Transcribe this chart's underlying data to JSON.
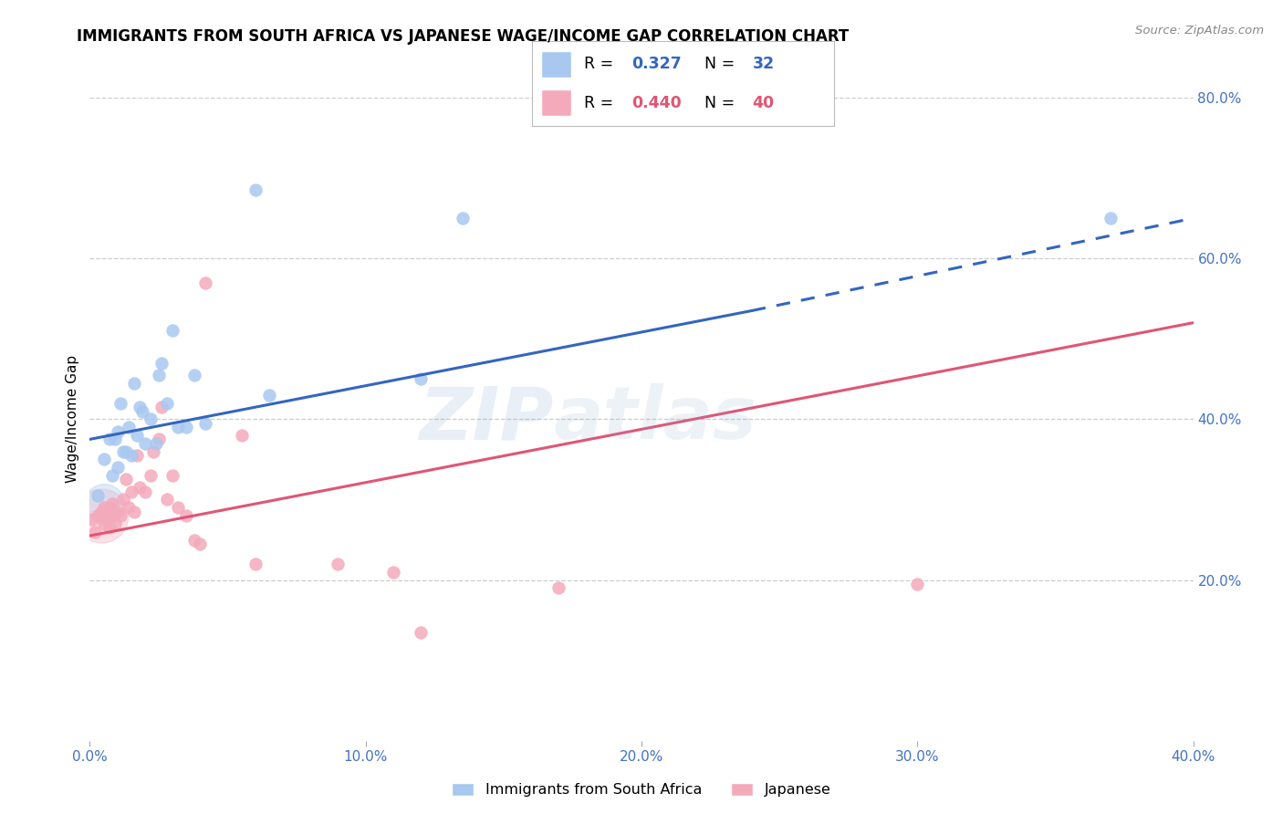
{
  "title": "IMMIGRANTS FROM SOUTH AFRICA VS JAPANESE WAGE/INCOME GAP CORRELATION CHART",
  "source": "Source: ZipAtlas.com",
  "ylabel": "Wage/Income Gap",
  "xlim": [
    0.0,
    0.4
  ],
  "ylim": [
    0.0,
    0.8
  ],
  "xticks": [
    0.0,
    0.1,
    0.2,
    0.3,
    0.4
  ],
  "yticks_right": [
    0.2,
    0.4,
    0.6,
    0.8
  ],
  "blue_R": 0.327,
  "blue_N": 32,
  "pink_R": 0.44,
  "pink_N": 40,
  "blue_label": "Immigrants from South Africa",
  "pink_label": "Japanese",
  "blue_color": "#A8C8F0",
  "pink_color": "#F4AABB",
  "blue_line_color": "#3465C0",
  "pink_line_color": "#E05575",
  "axis_label_color": "#4472C4",
  "grid_color": "#CCCCCC",
  "background_color": "#FFFFFF",
  "blue_scatter_x": [
    0.003,
    0.005,
    0.007,
    0.008,
    0.009,
    0.01,
    0.01,
    0.011,
    0.012,
    0.013,
    0.014,
    0.015,
    0.016,
    0.017,
    0.018,
    0.019,
    0.02,
    0.022,
    0.024,
    0.025,
    0.026,
    0.028,
    0.03,
    0.032,
    0.035,
    0.038,
    0.042,
    0.06,
    0.065,
    0.12,
    0.135,
    0.37
  ],
  "blue_scatter_y": [
    0.305,
    0.35,
    0.375,
    0.33,
    0.375,
    0.34,
    0.385,
    0.42,
    0.36,
    0.36,
    0.39,
    0.355,
    0.445,
    0.38,
    0.415,
    0.41,
    0.37,
    0.4,
    0.37,
    0.455,
    0.47,
    0.42,
    0.51,
    0.39,
    0.39,
    0.455,
    0.395,
    0.685,
    0.43,
    0.45,
    0.65,
    0.65
  ],
  "pink_scatter_x": [
    0.001,
    0.002,
    0.003,
    0.004,
    0.005,
    0.005,
    0.006,
    0.007,
    0.007,
    0.008,
    0.008,
    0.009,
    0.01,
    0.011,
    0.012,
    0.013,
    0.014,
    0.015,
    0.016,
    0.017,
    0.018,
    0.02,
    0.022,
    0.023,
    0.025,
    0.026,
    0.028,
    0.03,
    0.032,
    0.035,
    0.038,
    0.04,
    0.042,
    0.055,
    0.06,
    0.09,
    0.11,
    0.12,
    0.17,
    0.3
  ],
  "pink_scatter_y": [
    0.275,
    0.26,
    0.28,
    0.285,
    0.27,
    0.29,
    0.275,
    0.265,
    0.29,
    0.28,
    0.295,
    0.27,
    0.285,
    0.28,
    0.3,
    0.325,
    0.29,
    0.31,
    0.285,
    0.355,
    0.315,
    0.31,
    0.33,
    0.36,
    0.375,
    0.415,
    0.3,
    0.33,
    0.29,
    0.28,
    0.25,
    0.245,
    0.57,
    0.38,
    0.22,
    0.22,
    0.21,
    0.135,
    0.19,
    0.195
  ],
  "watermark_line1": "ZIP",
  "watermark_line2": "atlas"
}
